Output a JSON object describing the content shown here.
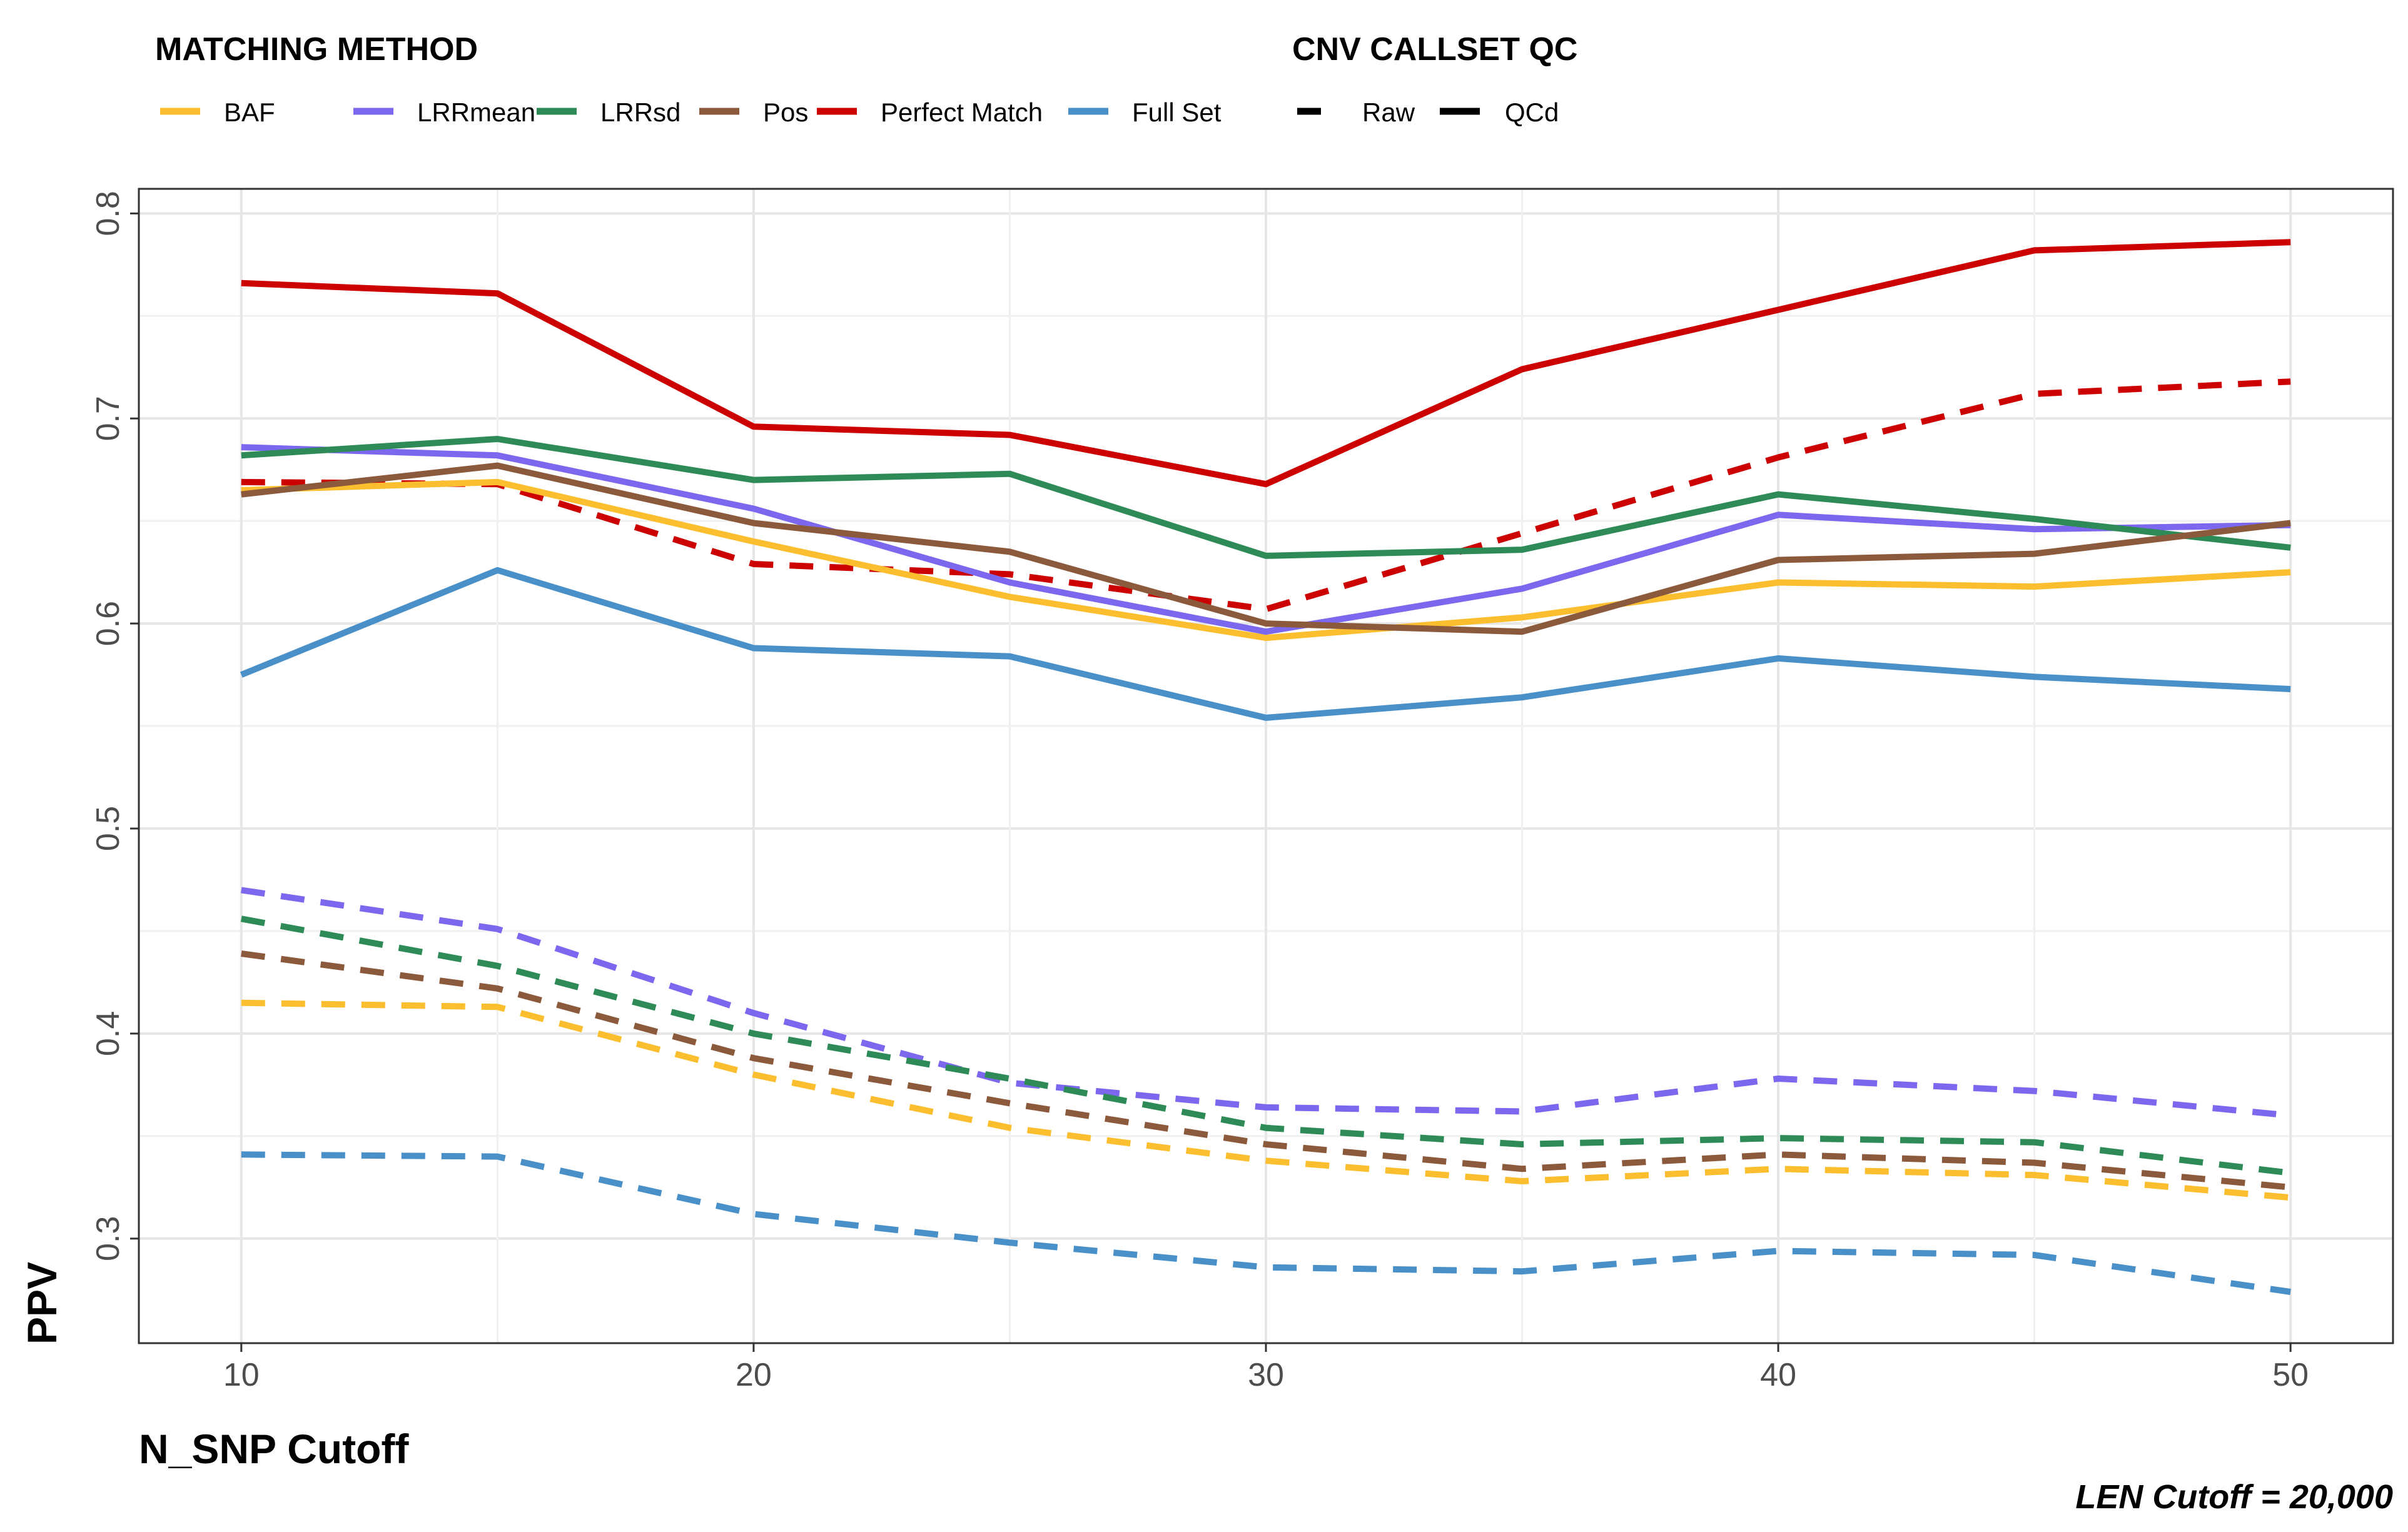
{
  "legend": {
    "method_title": "MATCHING METHOD",
    "qc_title": "CNV CALLSET QC",
    "method_items": [
      {
        "label": "BAF",
        "color": "#FBBE2E"
      },
      {
        "label": "LRRmean",
        "color": "#7B68EE"
      },
      {
        "label": "LRRsd",
        "color": "#2E8B57"
      },
      {
        "label": "Pos",
        "color": "#8B5A3C"
      },
      {
        "label": "Perfect Match",
        "color": "#CC0000"
      },
      {
        "label": "Full Set",
        "color": "#4A90C8"
      }
    ],
    "qc_items": [
      {
        "label": "Raw",
        "linetype": "dashed"
      },
      {
        "label": "QCd",
        "linetype": "solid"
      }
    ]
  },
  "caption": "LEN Cutoff = 20,000",
  "chart_data": {
    "type": "line",
    "xlabel": "N_SNP Cutoff",
    "ylabel": "PPV",
    "xlim": [
      8,
      52
    ],
    "ylim": [
      0.249,
      0.812
    ],
    "x_ticks": [
      10,
      20,
      30,
      40,
      50
    ],
    "y_ticks": [
      0.3,
      0.4,
      0.5,
      0.6,
      0.7,
      0.8
    ],
    "x_tick_labels": [
      "10",
      "20",
      "30",
      "40",
      "50"
    ],
    "y_tick_labels": [
      "0.3",
      "0.4",
      "0.5",
      "0.6",
      "0.7",
      "0.8"
    ],
    "grid": true,
    "x": [
      10,
      15,
      20,
      25,
      30,
      35,
      40,
      45,
      50
    ],
    "series": [
      {
        "name": "BAF",
        "qc": "QCd",
        "color": "#FBBE2E",
        "dash": false,
        "values": [
          0.665,
          0.669,
          0.64,
          0.613,
          0.593,
          0.603,
          0.62,
          0.618,
          0.625
        ]
      },
      {
        "name": "LRRmean",
        "qc": "QCd",
        "color": "#7B68EE",
        "dash": false,
        "values": [
          0.686,
          0.682,
          0.656,
          0.62,
          0.596,
          0.617,
          0.653,
          0.646,
          0.648
        ]
      },
      {
        "name": "LRRsd",
        "qc": "QCd",
        "color": "#2E8B57",
        "dash": false,
        "values": [
          0.682,
          0.69,
          0.67,
          0.673,
          0.633,
          0.636,
          0.663,
          0.651,
          0.637
        ]
      },
      {
        "name": "Pos",
        "qc": "QCd",
        "color": "#8B5A3C",
        "dash": false,
        "values": [
          0.663,
          0.677,
          0.649,
          0.635,
          0.6,
          0.596,
          0.631,
          0.634,
          0.649
        ]
      },
      {
        "name": "Perfect Match",
        "qc": "QCd",
        "color": "#CC0000",
        "dash": false,
        "values": [
          0.766,
          0.761,
          0.696,
          0.692,
          0.668,
          0.724,
          0.753,
          0.782,
          0.786
        ]
      },
      {
        "name": "Full Set",
        "qc": "QCd",
        "color": "#4A90C8",
        "dash": false,
        "values": [
          0.575,
          0.626,
          0.588,
          0.584,
          0.554,
          0.564,
          0.583,
          0.574,
          0.568
        ]
      },
      {
        "name": "BAF",
        "qc": "Raw",
        "color": "#FBBE2E",
        "dash": true,
        "values": [
          0.415,
          0.413,
          0.38,
          0.354,
          0.338,
          0.328,
          0.334,
          0.331,
          0.32
        ]
      },
      {
        "name": "LRRmean",
        "qc": "Raw",
        "color": "#7B68EE",
        "dash": true,
        "values": [
          0.47,
          0.451,
          0.41,
          0.376,
          0.364,
          0.362,
          0.378,
          0.372,
          0.36
        ]
      },
      {
        "name": "LRRsd",
        "qc": "Raw",
        "color": "#2E8B57",
        "dash": true,
        "values": [
          0.456,
          0.433,
          0.4,
          0.378,
          0.354,
          0.346,
          0.349,
          0.347,
          0.332
        ]
      },
      {
        "name": "Pos",
        "qc": "Raw",
        "color": "#8B5A3C",
        "dash": true,
        "values": [
          0.439,
          0.422,
          0.388,
          0.366,
          0.346,
          0.334,
          0.341,
          0.337,
          0.325
        ]
      },
      {
        "name": "Perfect Match",
        "qc": "Raw",
        "color": "#CC0000",
        "dash": true,
        "values": [
          0.669,
          0.668,
          0.629,
          0.624,
          0.607,
          0.644,
          0.681,
          0.712,
          0.718
        ]
      },
      {
        "name": "Full Set",
        "qc": "Raw",
        "color": "#4A90C8",
        "dash": true,
        "values": [
          0.341,
          0.34,
          0.312,
          0.298,
          0.286,
          0.284,
          0.294,
          0.292,
          0.274
        ]
      }
    ]
  }
}
